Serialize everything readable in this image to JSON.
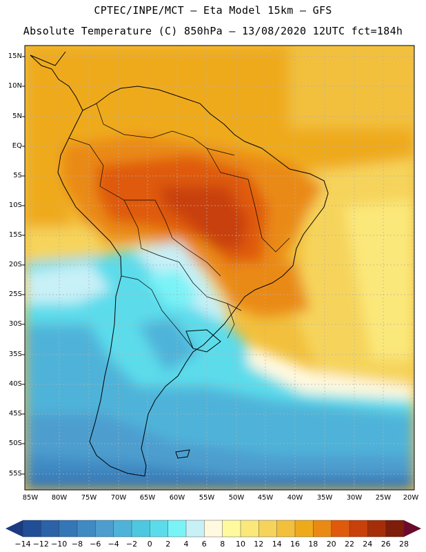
{
  "header": {
    "line1": "CPTEC/INPE/MCT –  Eta Model 15km – GFS",
    "line2": "Absolute Temperature (C) 850hPa – 13/08/2020 12UTC fct=184h"
  },
  "map": {
    "lat_labels": [
      "15N",
      "10N",
      "5N",
      "EQ",
      "5S",
      "10S",
      "15S",
      "20S",
      "25S",
      "30S",
      "35S",
      "40S",
      "45S",
      "50S",
      "55S"
    ],
    "lon_labels": [
      "85W",
      "80W",
      "75W",
      "70W",
      "65W",
      "60W",
      "55W",
      "50W",
      "45W",
      "40W",
      "35W",
      "30W",
      "25W",
      "20W"
    ]
  },
  "colorbar": {
    "labels": [
      "-14",
      "-12",
      "-10",
      "-8",
      "-6",
      "-4",
      "-2",
      "0",
      "2",
      "4",
      "6",
      "8",
      "10",
      "12",
      "14",
      "16",
      "18",
      "20",
      "22",
      "24",
      "26",
      "28"
    ],
    "colors": [
      "#1f4e96",
      "#2b62a8",
      "#3576b6",
      "#3f8ac3",
      "#4d9ecf",
      "#4fb3d9",
      "#4ec8e0",
      "#5bdceb",
      "#7af3f7",
      "#c8f0f7",
      "#fff9e0",
      "#fffa9e",
      "#fbe87a",
      "#f6d45c",
      "#f2c03c",
      "#efaa1c",
      "#ea8a14",
      "#df5a0c",
      "#c8400a",
      "#a52e08",
      "#7d1d0a"
    ],
    "low_color": "#1a3a82",
    "high_color": "#6b0a2a"
  }
}
